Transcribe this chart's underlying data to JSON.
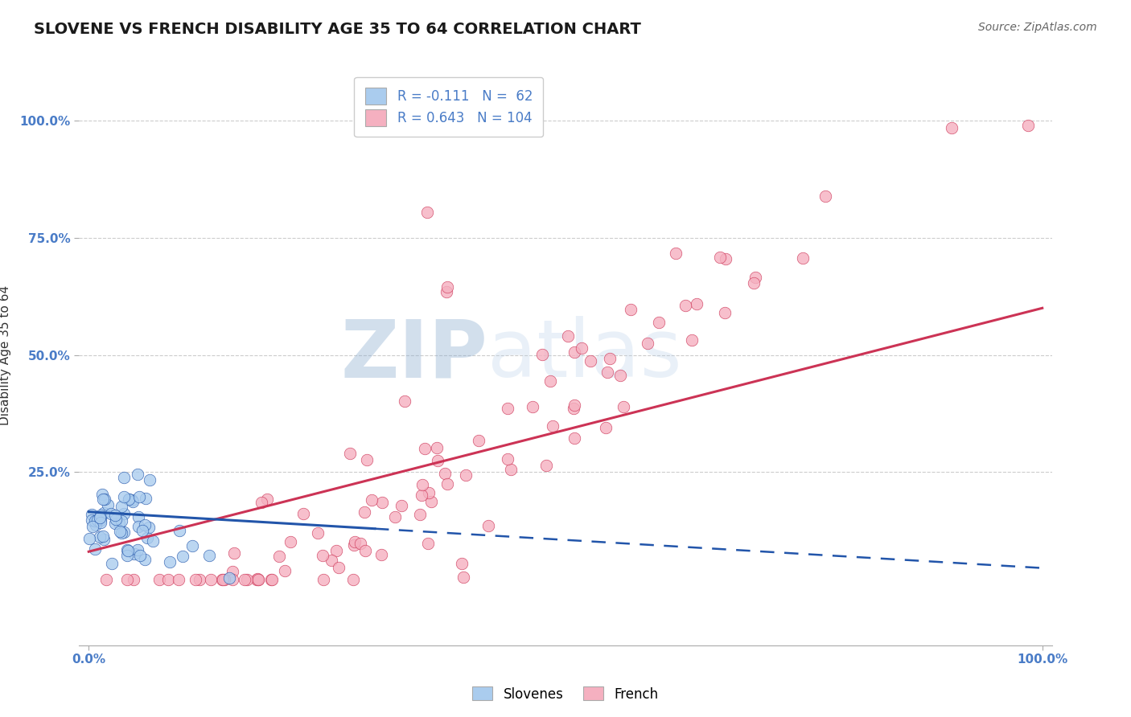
{
  "title": "SLOVENE VS FRENCH DISABILITY AGE 35 TO 64 CORRELATION CHART",
  "source_text": "Source: ZipAtlas.com",
  "ylabel": "Disability Age 35 to 64",
  "xtick_labels": [
    "0.0%",
    "100.0%"
  ],
  "ytick_labels": [
    "25.0%",
    "50.0%",
    "75.0%",
    "100.0%"
  ],
  "ytick_positions": [
    0.25,
    0.5,
    0.75,
    1.0
  ],
  "legend_labels": [
    "Slovenes",
    "French"
  ],
  "slovene_color": "#aaccee",
  "french_color": "#f5b0c0",
  "slovene_line_color": "#2255aa",
  "french_line_color": "#cc3355",
  "R_slovene": -0.111,
  "N_slovene": 62,
  "R_french": 0.643,
  "N_french": 104,
  "watermark_zip": "ZIP",
  "watermark_atlas": "atlas",
  "title_fontsize": 14,
  "axis_label_fontsize": 11,
  "tick_fontsize": 11,
  "legend_fontsize": 12,
  "source_fontsize": 10,
  "grid_color": "#cccccc",
  "background_color": "#ffffff",
  "tick_color": "#4a7cc7"
}
